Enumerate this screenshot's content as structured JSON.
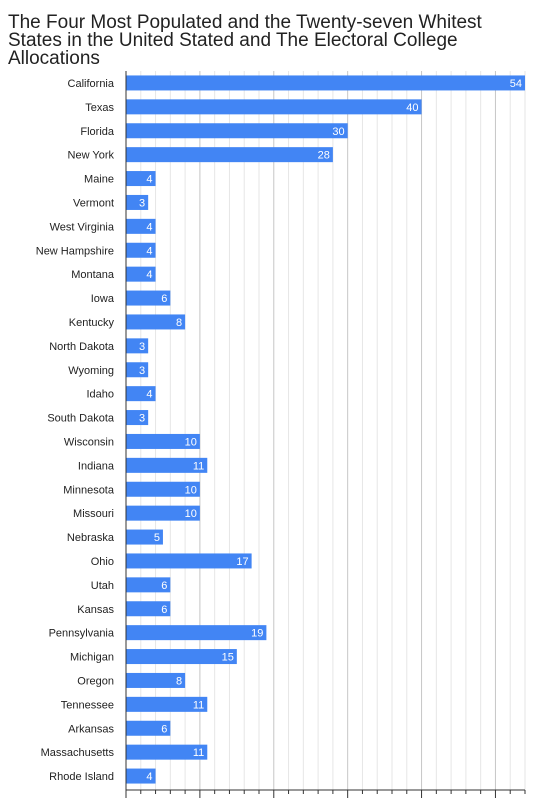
{
  "chart_data": {
    "type": "bar",
    "orientation": "horizontal",
    "title": "The Four Most Populated and the Twenty-seven Whitest States in the United Stated and The Electoral College Allocations",
    "categories": [
      "California",
      "Texas",
      "Florida",
      "New York",
      "Maine",
      "Vermont",
      "West Virginia",
      "New Hampshire",
      "Montana",
      "Iowa",
      "Kentucky",
      "North Dakota",
      "Wyoming",
      "Idaho",
      "South Dakota",
      "Wisconsin",
      "Indiana",
      "Minnesota",
      "Missouri",
      "Nebraska",
      "Ohio",
      "Utah",
      "Kansas",
      "Pennsylvania",
      "Michigan",
      "Oregon",
      "Tennessee",
      "Arkansas",
      "Massachusetts",
      "Rhode Island"
    ],
    "values": [
      54,
      40,
      30,
      28,
      4,
      3,
      4,
      4,
      4,
      6,
      8,
      3,
      3,
      4,
      3,
      10,
      11,
      10,
      10,
      5,
      17,
      6,
      6,
      19,
      15,
      8,
      11,
      6,
      11,
      4
    ],
    "xlim": [
      0,
      54
    ],
    "grid": true,
    "bar_color": "#4285f4"
  }
}
